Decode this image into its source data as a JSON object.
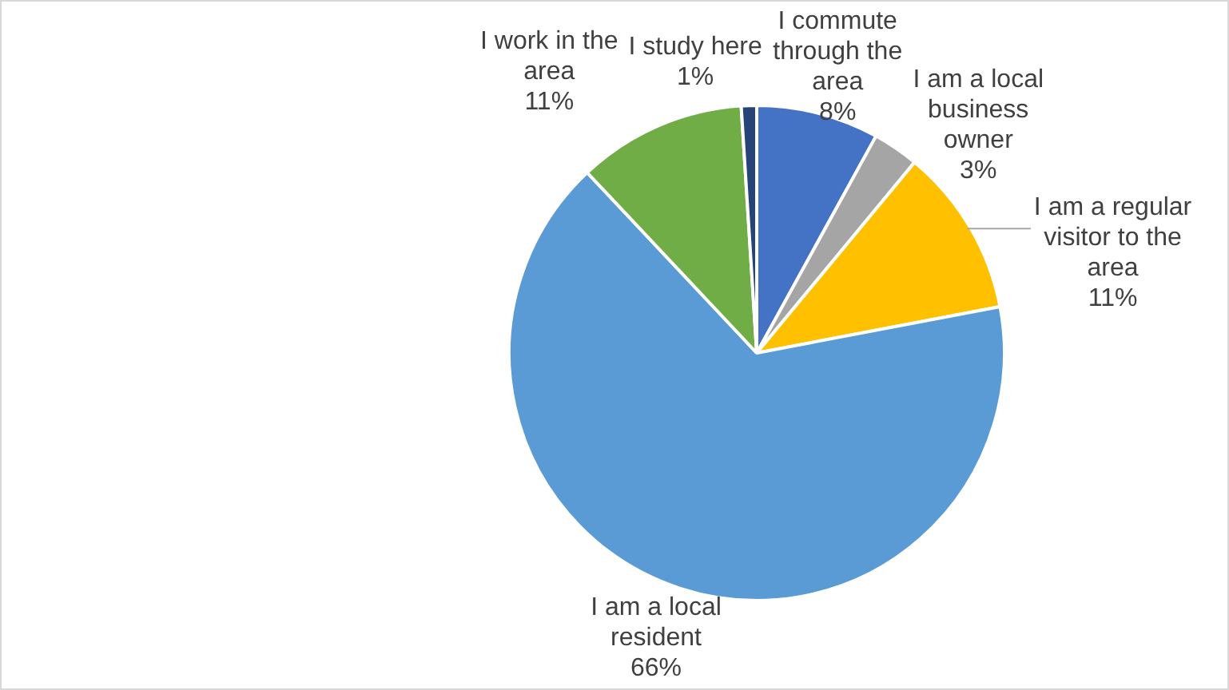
{
  "chart_data": {
    "type": "pie",
    "categories": [
      "I commute through the area",
      "I am a local business owner",
      "I am a regular visitor to the area",
      "I am a local resident",
      "I work in the area",
      "I study here"
    ],
    "values": [
      8,
      3,
      11,
      66,
      11,
      1
    ],
    "value_labels": [
      "8%",
      "3%",
      "11%",
      "66%",
      "11%",
      "1%"
    ],
    "colors": [
      "#4472c4",
      "#a5a5a5",
      "#ffc000",
      "#5b9bd5",
      "#70ad47",
      "#264478"
    ],
    "legend": false
  }
}
